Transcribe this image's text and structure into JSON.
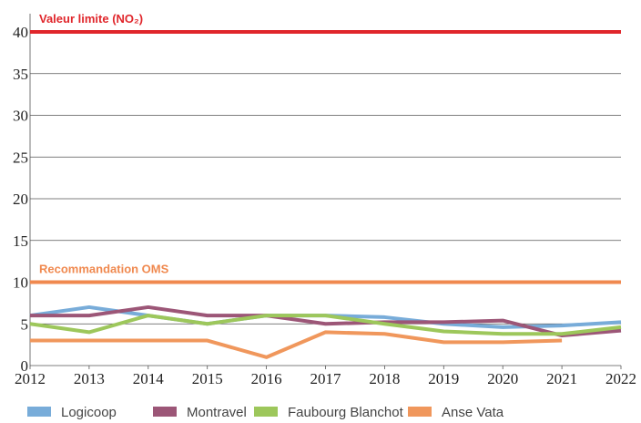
{
  "chart_data": {
    "type": "line",
    "x": [
      2012,
      2013,
      2014,
      2015,
      2016,
      2017,
      2018,
      2019,
      2020,
      2021,
      2022
    ],
    "series": [
      {
        "name": "Logicoop",
        "color": "#78acd9",
        "values": [
          6,
          7,
          6,
          5,
          6,
          6,
          5.8,
          5,
          4.6,
          4.8,
          5.2
        ]
      },
      {
        "name": "Montravel",
        "color": "#9c5677",
        "values": [
          6,
          6,
          7,
          6,
          6,
          5,
          5.2,
          5.2,
          5.4,
          3.6,
          4.2
        ]
      },
      {
        "name": "Faubourg Blanchot",
        "color": "#9dc75b",
        "values": [
          5,
          4,
          6,
          5,
          6,
          6,
          5,
          4.1,
          3.8,
          3.8,
          4.6
        ]
      },
      {
        "name": "Anse Vata",
        "color": "#f0975c",
        "values": [
          3,
          3,
          3,
          3,
          1,
          4,
          3.8,
          2.8,
          2.8,
          3,
          null
        ]
      }
    ],
    "reference_lines": [
      {
        "label": "Valeur limite (NO₂)",
        "value": 40,
        "color": "#e0262b"
      },
      {
        "label": "Recommandation OMS",
        "value": 10,
        "color": "#f0894f"
      }
    ],
    "xlim": [
      2012,
      2022
    ],
    "xticks": [
      2012,
      2013,
      2014,
      2015,
      2016,
      2017,
      2018,
      2019,
      2020,
      2021,
      2022
    ],
    "ylim": [
      0,
      40
    ],
    "yticks": [
      0,
      5,
      10,
      15,
      20,
      25,
      30,
      35,
      40
    ],
    "grid": true,
    "legend": "bottom"
  }
}
